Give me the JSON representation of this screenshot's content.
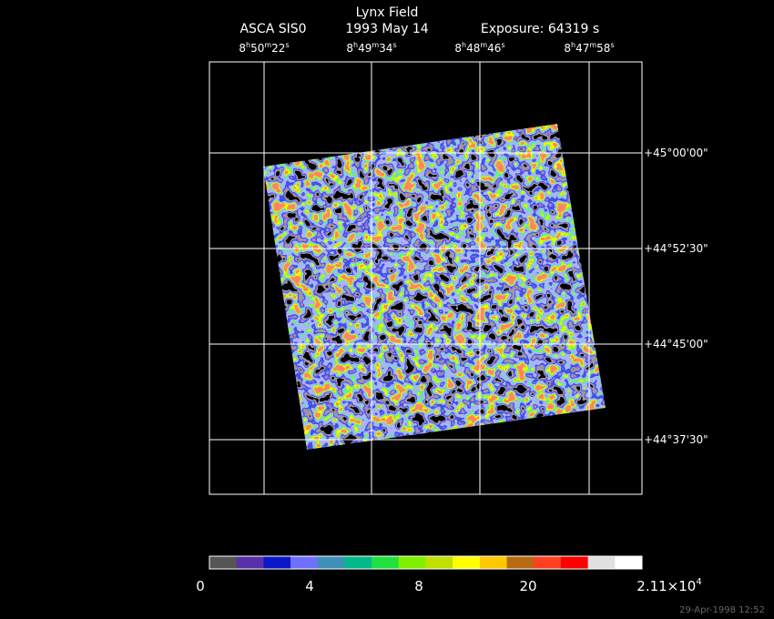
{
  "title": "Lynx Field",
  "subtitle": {
    "instrument": "ASCA SIS0",
    "date": "1993 May 14",
    "exposure": "Exposure: 64319 s"
  },
  "ra_labels": [
    [
      "8",
      "h",
      "50",
      "m",
      "22",
      "s"
    ],
    [
      "8",
      "h",
      "49",
      "m",
      "34",
      "s"
    ],
    [
      "8",
      "h",
      "48",
      "m",
      "46",
      "s"
    ],
    [
      "8",
      "h",
      "47",
      "m",
      "58",
      "s"
    ]
  ],
  "dec_labels": [
    "+45°00'00\"",
    "+44°52'30\"",
    "+44°45'00\"",
    "+44°37'30\""
  ],
  "colorbar": {
    "colors": [
      "#555555",
      "#5a30a8",
      "#0c18c8",
      "#7070ff",
      "#3e90b8",
      "#00b88a",
      "#20e040",
      "#80f000",
      "#c0e000",
      "#ffff00",
      "#ffc800",
      "#b86a10",
      "#ff4020",
      "#ff0000",
      "#e0e0e0",
      "#ffffff"
    ],
    "labels": [
      "0",
      "4",
      "8",
      "20"
    ],
    "max": {
      "base": "2.11×10",
      "exponent": "4"
    }
  },
  "timestamp": "29-Apr-1998 12:52"
}
